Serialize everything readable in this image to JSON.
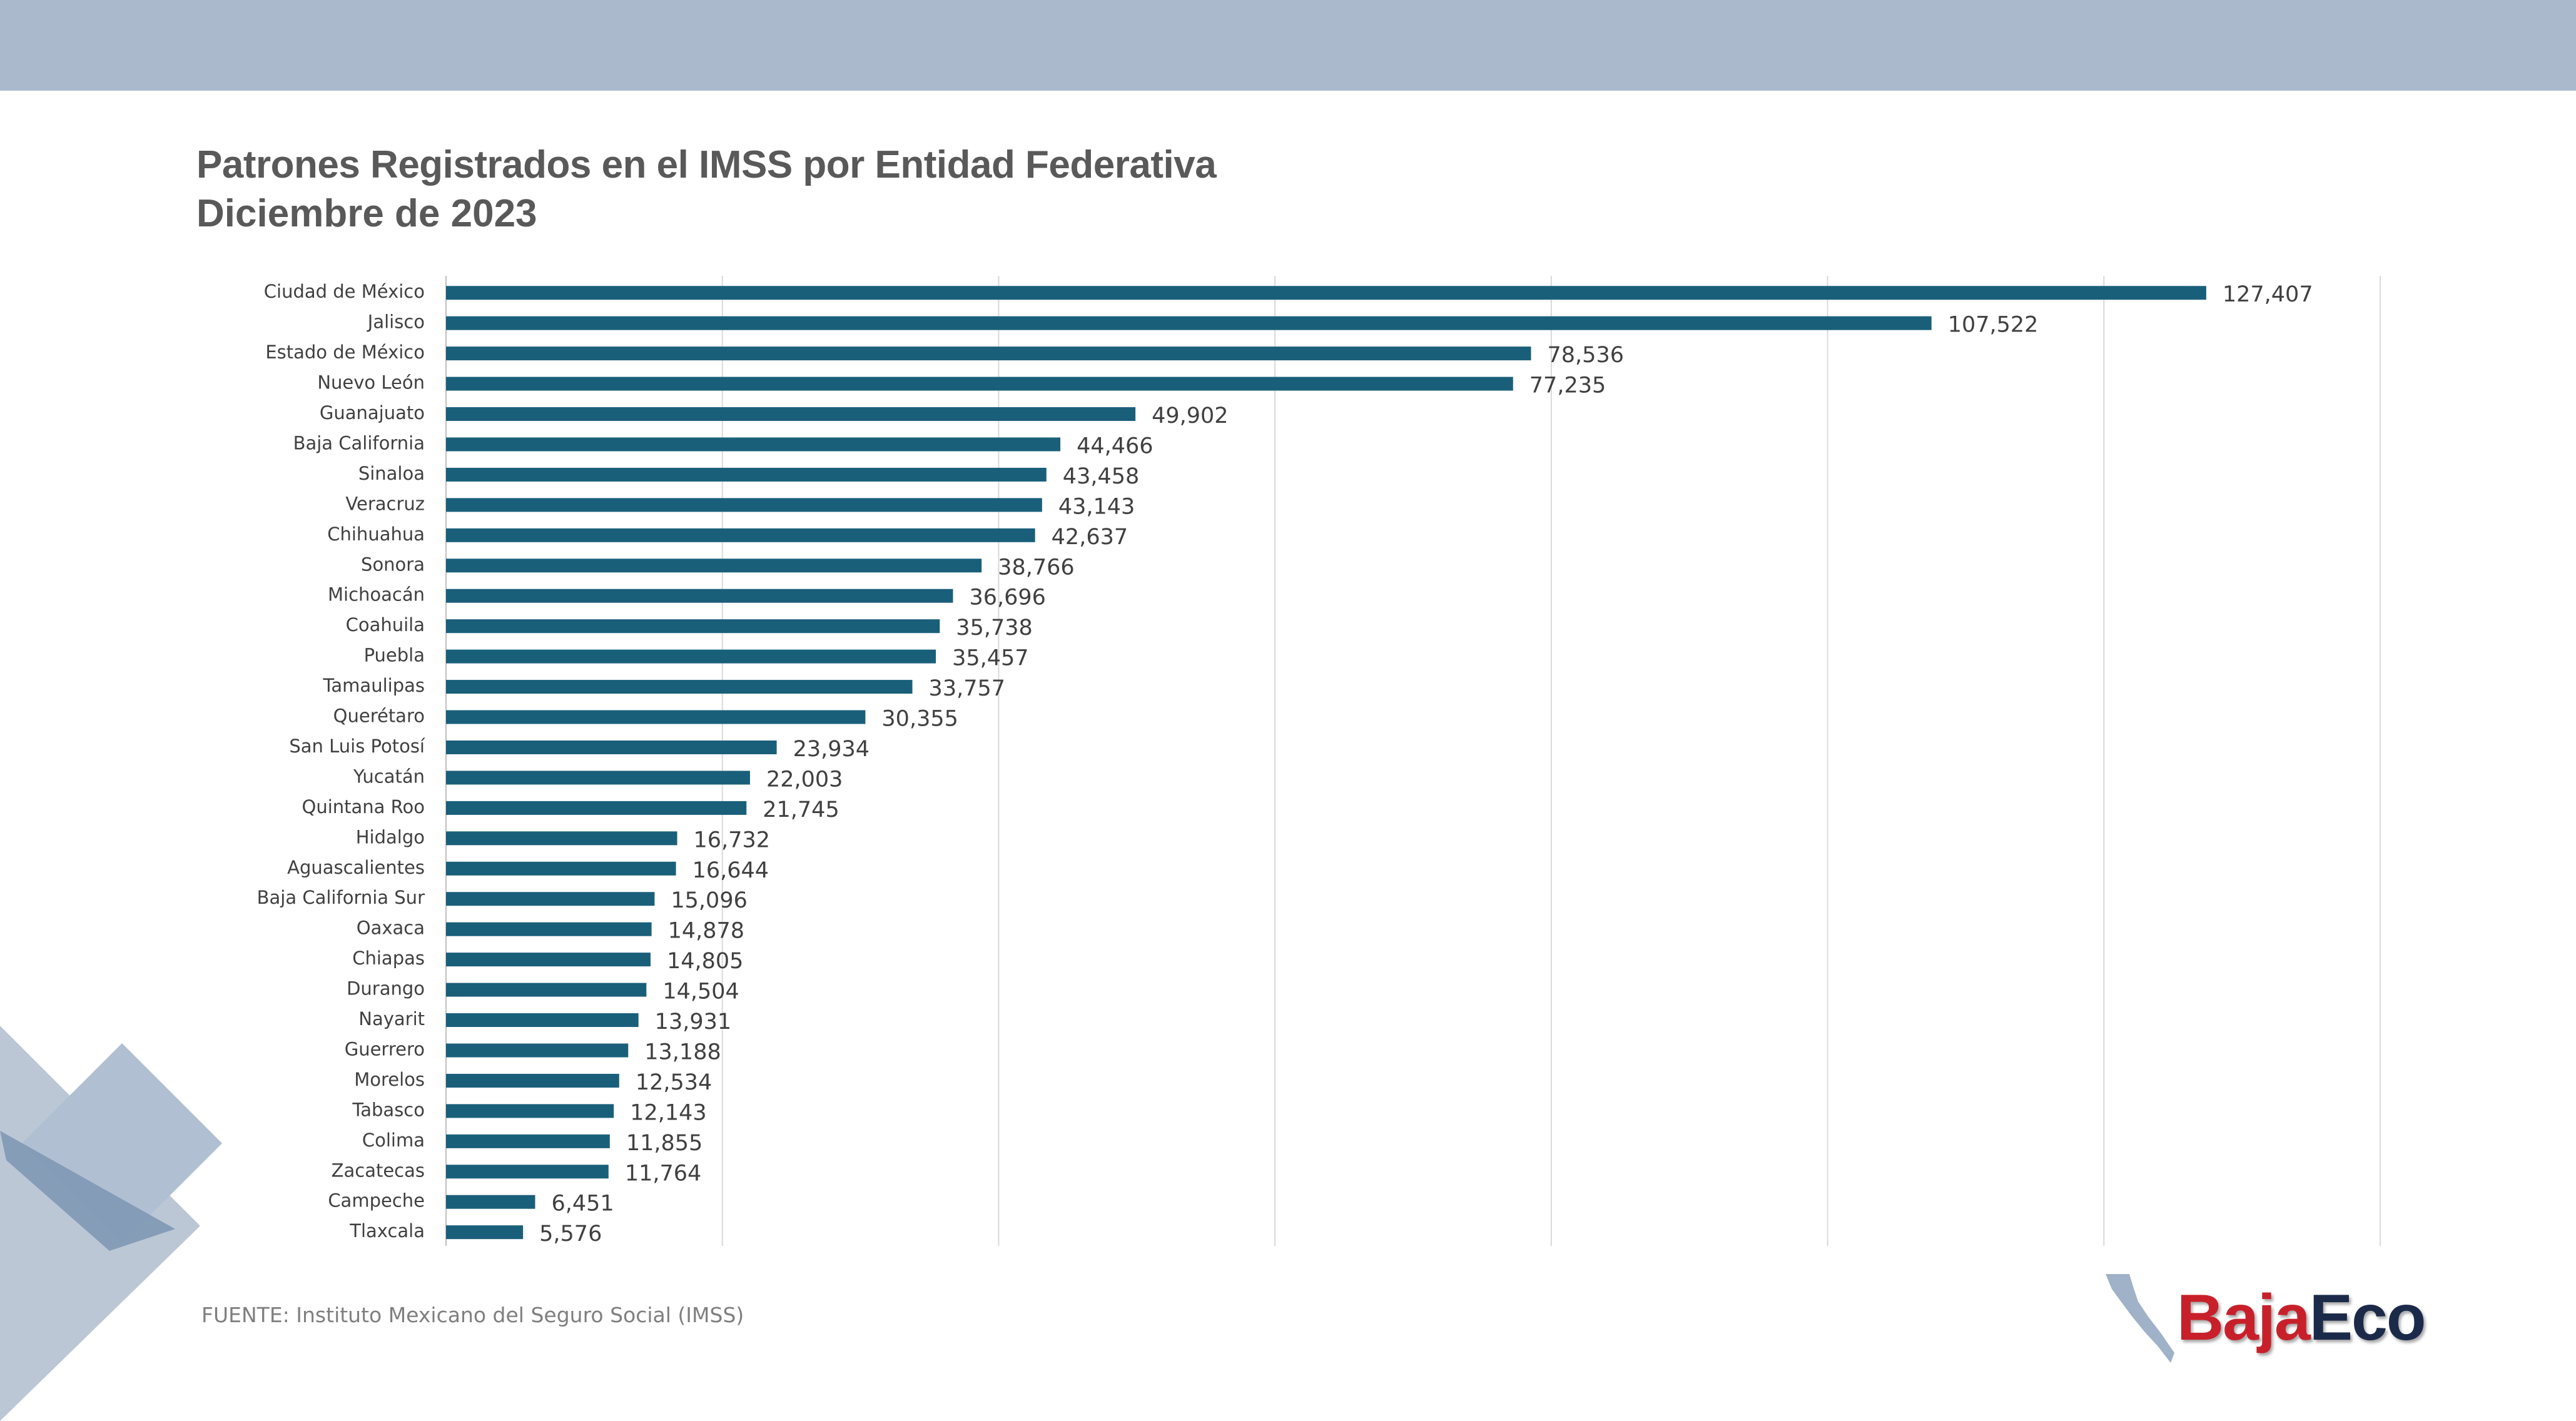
{
  "title": "Patrones Registrados en el IMSS por Entidad Federativa",
  "subtitle": "Diciembre de 2023",
  "source": "FUENTE: Instituto Mexicano del Seguro Social (IMSS)",
  "logo": {
    "part1": "Baja",
    "part2": "Eco"
  },
  "colors": {
    "bar": "#1a5f7a",
    "header_band": "#aab9cc",
    "grid": "#d9d9d9",
    "logo_red": "#c8202a",
    "logo_navy": "#1c2a4a"
  },
  "chart_data": {
    "type": "bar",
    "orientation": "horizontal",
    "grid": true,
    "xlim": [
      0,
      140000
    ],
    "x_gridlines": [
      20000,
      40000,
      60000,
      80000,
      100000,
      120000,
      140000
    ],
    "categories": [
      "Ciudad de México",
      "Jalisco",
      "Estado de México",
      "Nuevo León",
      "Guanajuato",
      "Baja California",
      "Sinaloa",
      "Veracruz",
      "Chihuahua",
      "Sonora",
      "Michoacán",
      "Coahuila",
      "Puebla",
      "Tamaulipas",
      "Querétaro",
      "San Luis Potosí",
      "Yucatán",
      "Quintana Roo",
      "Hidalgo",
      "Aguascalientes",
      "Baja California Sur",
      "Oaxaca",
      "Chiapas",
      "Durango",
      "Nayarit",
      "Guerrero",
      "Morelos",
      "Tabasco",
      "Colima",
      "Zacatecas",
      "Campeche",
      "Tlaxcala"
    ],
    "values": [
      127407,
      107522,
      78536,
      77235,
      49902,
      44466,
      43458,
      43143,
      42637,
      38766,
      36696,
      35738,
      35457,
      33757,
      30355,
      23934,
      22003,
      21745,
      16732,
      16644,
      15096,
      14878,
      14805,
      14504,
      13931,
      13188,
      12534,
      12143,
      11855,
      11764,
      6451,
      5576
    ],
    "data_labels": [
      "127,407",
      "107,522",
      "78,536",
      "77,235",
      "49,902",
      "44,466",
      "43,458",
      "43,143",
      "42,637",
      "38,766",
      "36,696",
      "35,738",
      "35,457",
      "33,757",
      "30,355",
      "23,934",
      "22,003",
      "21,745",
      "16,732",
      "16,644",
      "15,096",
      "14,878",
      "14,805",
      "14,504",
      "13,931",
      "13,188",
      "12,534",
      "12,143",
      "11,855",
      "11,764",
      "6,451",
      "5,576"
    ]
  }
}
